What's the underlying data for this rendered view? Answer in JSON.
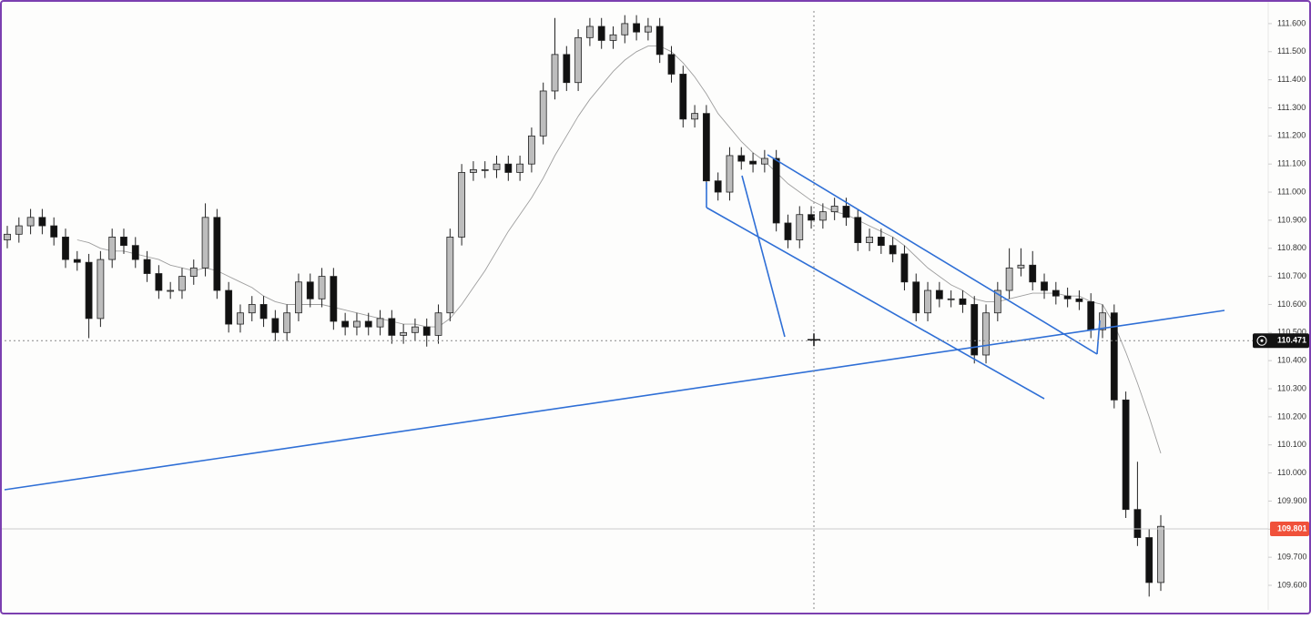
{
  "chart_data": {
    "type": "candlestick",
    "ylim": [
      109.5125,
      111.684
    ],
    "yticks": [
      {
        "value": 111.6,
        "label": "111.600"
      },
      {
        "value": 111.5,
        "label": "111.500"
      },
      {
        "value": 111.4,
        "label": "111.400"
      },
      {
        "value": 111.3,
        "label": "111.300"
      },
      {
        "value": 111.2,
        "label": "111.200"
      },
      {
        "value": 111.1,
        "label": "111.100"
      },
      {
        "value": 111.0,
        "label": "111.000"
      },
      {
        "value": 110.9,
        "label": "110.900"
      },
      {
        "value": 110.8,
        "label": "110.800"
      },
      {
        "value": 110.7,
        "label": "110.700"
      },
      {
        "value": 110.6,
        "label": "110.600"
      },
      {
        "value": 110.5,
        "label": "110.500"
      },
      {
        "value": 110.4,
        "label": "110.400"
      },
      {
        "value": 110.3,
        "label": "110.300"
      },
      {
        "value": 110.2,
        "label": "110.200"
      },
      {
        "value": 110.1,
        "label": "110.100"
      },
      {
        "value": 110.0,
        "label": "110.000"
      },
      {
        "value": 109.9,
        "label": "109.900"
      },
      {
        "value": 109.8,
        "label": "109.800"
      },
      {
        "value": 109.7,
        "label": "109.700"
      },
      {
        "value": 109.6,
        "label": "109.600"
      }
    ],
    "up_color": "#bdbdbd",
    "down_color": "#111111",
    "ma_color": "#9e9e9e",
    "open": [
      110.83,
      110.85,
      110.88,
      110.91,
      110.88,
      110.84,
      110.76,
      110.75,
      110.55,
      110.76,
      110.84,
      110.81,
      110.76,
      110.71,
      110.65,
      110.65,
      110.7,
      110.73,
      110.91,
      110.65,
      110.53,
      110.57,
      110.6,
      110.55,
      110.5,
      110.57,
      110.68,
      110.62,
      110.7,
      110.54,
      110.52,
      110.54,
      110.52,
      110.55,
      110.49,
      110.5,
      110.52,
      110.49,
      110.57,
      110.84,
      111.07,
      111.08,
      111.08,
      111.1,
      111.07,
      111.1,
      111.2,
      111.36,
      111.49,
      111.39,
      111.55,
      111.59,
      111.54,
      111.56,
      111.6,
      111.57,
      111.59,
      111.49,
      111.42,
      111.26,
      111.28,
      111.04,
      111.0,
      111.13,
      111.11,
      111.1,
      111.12,
      110.89,
      110.83,
      110.92,
      110.9,
      110.93,
      110.95,
      110.91,
      110.82,
      110.84,
      110.81,
      110.78,
      110.68,
      110.57,
      110.65,
      110.62,
      110.62,
      110.6,
      110.42,
      110.57,
      110.65,
      110.73,
      110.74,
      110.68,
      110.65,
      110.63,
      110.62,
      110.61,
      110.51,
      110.57,
      110.26,
      109.87,
      109.77,
      109.61
    ],
    "high": [
      110.88,
      110.91,
      110.94,
      110.94,
      110.91,
      110.87,
      110.79,
      110.78,
      110.79,
      110.87,
      110.87,
      110.84,
      110.79,
      110.74,
      110.68,
      110.73,
      110.76,
      110.96,
      110.94,
      110.68,
      110.6,
      110.63,
      110.63,
      110.58,
      110.6,
      110.71,
      110.71,
      110.73,
      110.73,
      110.57,
      110.57,
      110.57,
      110.58,
      110.58,
      110.53,
      110.55,
      110.55,
      110.6,
      110.87,
      111.1,
      111.11,
      111.11,
      111.13,
      111.13,
      111.13,
      111.23,
      111.39,
      111.62,
      111.52,
      111.58,
      111.62,
      111.62,
      111.59,
      111.63,
      111.63,
      111.62,
      111.62,
      111.52,
      111.45,
      111.31,
      111.31,
      111.07,
      111.16,
      111.16,
      111.14,
      111.15,
      111.15,
      110.92,
      110.95,
      110.95,
      110.96,
      110.98,
      110.98,
      110.94,
      110.87,
      110.87,
      110.84,
      110.81,
      110.71,
      110.68,
      110.68,
      110.65,
      110.65,
      110.63,
      110.6,
      110.68,
      110.8,
      110.8,
      110.79,
      110.71,
      110.68,
      110.66,
      110.65,
      110.64,
      110.6,
      110.6,
      110.29,
      110.04,
      109.8,
      109.85
    ],
    "low": [
      110.8,
      110.82,
      110.85,
      110.85,
      110.81,
      110.73,
      110.72,
      110.48,
      110.52,
      110.73,
      110.78,
      110.73,
      110.68,
      110.62,
      110.62,
      110.62,
      110.67,
      110.7,
      110.62,
      110.5,
      110.5,
      110.54,
      110.52,
      110.47,
      110.47,
      110.54,
      110.59,
      110.59,
      110.51,
      110.49,
      110.49,
      110.49,
      110.49,
      110.46,
      110.46,
      110.47,
      110.45,
      110.46,
      110.54,
      110.81,
      111.04,
      111.05,
      111.05,
      111.04,
      111.04,
      111.07,
      111.17,
      111.33,
      111.36,
      111.36,
      111.52,
      111.51,
      111.51,
      111.53,
      111.54,
      111.54,
      111.46,
      111.39,
      111.23,
      111.23,
      111.01,
      110.97,
      110.97,
      111.08,
      111.07,
      111.07,
      110.86,
      110.8,
      110.8,
      110.87,
      110.87,
      110.9,
      110.88,
      110.79,
      110.79,
      110.78,
      110.75,
      110.65,
      110.54,
      110.54,
      110.59,
      110.59,
      110.57,
      110.39,
      110.39,
      110.54,
      110.62,
      110.7,
      110.65,
      110.62,
      110.6,
      110.59,
      110.58,
      110.48,
      110.48,
      110.23,
      109.84,
      109.74,
      109.56,
      109.58
    ],
    "close": [
      110.85,
      110.88,
      110.91,
      110.88,
      110.84,
      110.76,
      110.75,
      110.55,
      110.76,
      110.84,
      110.81,
      110.76,
      110.71,
      110.65,
      110.65,
      110.7,
      110.73,
      110.91,
      110.65,
      110.53,
      110.57,
      110.6,
      110.55,
      110.5,
      110.57,
      110.68,
      110.62,
      110.7,
      110.54,
      110.52,
      110.54,
      110.52,
      110.55,
      110.49,
      110.5,
      110.52,
      110.49,
      110.57,
      110.84,
      111.07,
      111.08,
      111.08,
      111.1,
      111.07,
      111.1,
      111.2,
      111.36,
      111.49,
      111.39,
      111.55,
      111.59,
      111.54,
      111.56,
      111.6,
      111.57,
      111.59,
      111.49,
      111.42,
      111.26,
      111.28,
      111.04,
      111.0,
      111.13,
      111.11,
      111.1,
      111.12,
      110.89,
      110.83,
      110.92,
      110.9,
      110.93,
      110.95,
      110.91,
      110.82,
      110.84,
      110.81,
      110.78,
      110.68,
      110.57,
      110.65,
      110.62,
      110.62,
      110.6,
      110.42,
      110.57,
      110.65,
      110.73,
      110.74,
      110.68,
      110.65,
      110.63,
      110.62,
      110.61,
      110.51,
      110.57,
      110.26,
      109.87,
      109.77,
      109.61,
      109.81
    ],
    "ma": [
      null,
      null,
      null,
      null,
      null,
      null,
      110.83,
      110.82,
      110.8,
      110.79,
      110.79,
      110.78,
      110.77,
      110.76,
      110.74,
      110.73,
      110.72,
      110.73,
      110.72,
      110.7,
      110.68,
      110.66,
      110.63,
      110.61,
      110.6,
      110.6,
      110.6,
      110.6,
      110.59,
      110.58,
      110.57,
      110.56,
      110.55,
      110.54,
      110.53,
      110.53,
      110.52,
      110.52,
      110.55,
      110.6,
      110.66,
      110.72,
      110.79,
      110.86,
      110.92,
      110.98,
      111.05,
      111.13,
      111.2,
      111.27,
      111.33,
      111.38,
      111.43,
      111.47,
      111.5,
      111.52,
      111.52,
      111.5,
      111.46,
      111.41,
      111.35,
      111.28,
      111.23,
      111.18,
      111.14,
      111.11,
      111.07,
      111.03,
      111.0,
      110.97,
      110.95,
      110.93,
      110.92,
      110.9,
      110.88,
      110.86,
      110.84,
      110.81,
      110.77,
      110.73,
      110.7,
      110.67,
      110.65,
      110.62,
      110.61,
      110.61,
      110.62,
      110.63,
      110.64,
      110.64,
      110.64,
      110.63,
      110.63,
      110.61,
      110.6,
      110.53,
      110.43,
      110.32,
      110.2,
      110.07
    ],
    "crosshair_price": {
      "value": 110.471,
      "label": "110.471"
    },
    "last_price": {
      "value": 109.801,
      "label": "109.801"
    }
  }
}
